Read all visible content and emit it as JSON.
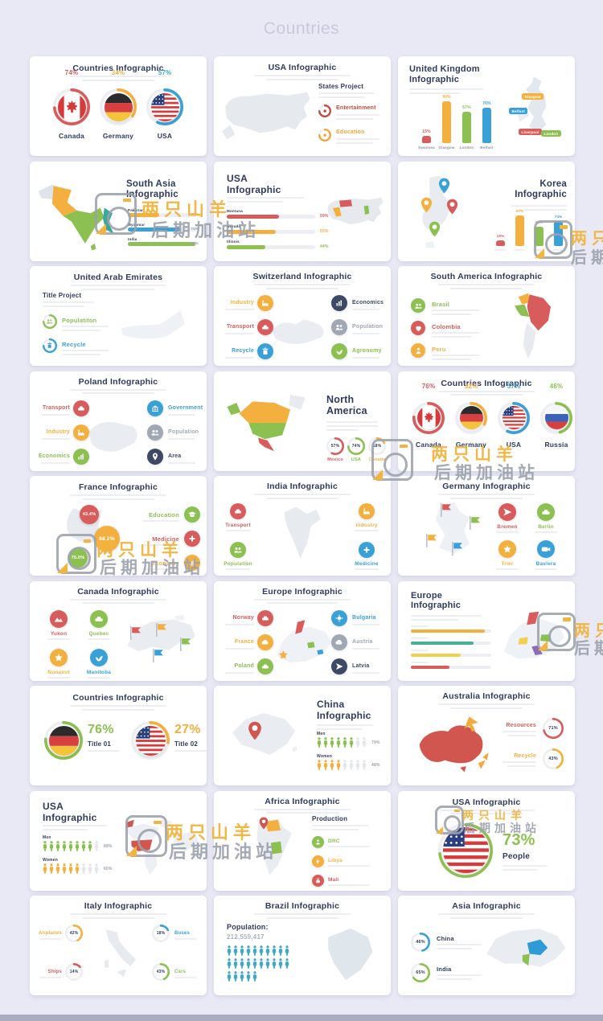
{
  "page": {
    "title": "Countries"
  },
  "watermark": {
    "brand": "两只山羊",
    "sub": "后期加油站"
  },
  "palette": {
    "red": "#d85c5c",
    "orange": "#f3b03f",
    "green": "#8cc152",
    "blue": "#3aa0d8",
    "navy": "#2f3b5c",
    "gray": "#a0a8b4",
    "teal": "#3fa9c9"
  },
  "slides": [
    {
      "type": "flags",
      "title": "Countries Infographic",
      "flags": [
        {
          "name": "Canada",
          "pct": "74%",
          "value": 74,
          "color": "#d85c5c",
          "flag": "canada"
        },
        {
          "name": "Germany",
          "pct": "34%",
          "value": 34,
          "color": "#f3b03f",
          "flag": "germany"
        },
        {
          "name": "USA",
          "pct": "57%",
          "value": 57,
          "color": "#3aa0d8",
          "flag": "usa"
        }
      ]
    },
    {
      "type": "map_items_right",
      "title": "USA Infographic",
      "map": "usa",
      "heading": "States Project",
      "items": [
        {
          "label": "Entertainment",
          "color": "#c44c3f"
        },
        {
          "label": "Education",
          "color": "#eda73d"
        }
      ]
    },
    {
      "type": "uk",
      "title": "United Kingdom\nInfographic",
      "map": "uk",
      "bars": [
        {
          "label": "Swansea",
          "value": 15,
          "display": "15%",
          "color": "#d85c5c"
        },
        {
          "label": "Glasgow",
          "value": 90,
          "display": "90%",
          "color": "#f3b03f"
        },
        {
          "label": "London",
          "value": 67,
          "display": "67%",
          "color": "#8cc152"
        },
        {
          "label": "Belfast",
          "value": 76,
          "display": "76%",
          "color": "#3aa0d8"
        }
      ],
      "pills": [
        {
          "label": "Glasgow",
          "color": "#f3b03f"
        },
        {
          "label": "Belfast",
          "color": "#3aa0d8"
        },
        {
          "label": "Liverpool",
          "color": "#d85c5c"
        },
        {
          "label": "London",
          "color": "#8cc152"
        }
      ]
    },
    {
      "type": "map_left_hbars",
      "title": "South Asia\nInfographic",
      "map": "south_asia",
      "bars": [
        {
          "label": "Pakistan",
          "value": 45,
          "display": "45%",
          "color": "#f3b03f"
        },
        {
          "label": "Myanmar",
          "value": 75,
          "display": "75%",
          "color": "#3aa0d8"
        },
        {
          "label": "India",
          "value": 98,
          "display": "98%",
          "color": "#8cc152"
        }
      ]
    },
    {
      "type": "hbars_map_right",
      "title": "USA\nInfographic",
      "map": "usa_states",
      "bars": [
        {
          "label": "Montana",
          "value": 59,
          "display": "59%",
          "color": "#d85c5c"
        },
        {
          "label": "Nevada",
          "value": 55,
          "display": "55%",
          "color": "#f3b03f"
        },
        {
          "label": "Illinois",
          "value": 44,
          "display": "44%",
          "color": "#8cc152"
        }
      ]
    },
    {
      "type": "korea",
      "title": "Korea\nInfographic",
      "map": "korea",
      "pins": [
        "#3aa0d8",
        "#d85c5c",
        "#f3b03f",
        "#8cc152"
      ],
      "bars": [
        {
          "value": 19,
          "display": "19%",
          "color": "#d85c5c"
        },
        {
          "value": 92,
          "display": "92%",
          "color": "#f3b03f"
        },
        {
          "value": 59,
          "display": "59%",
          "color": "#8cc152"
        },
        {
          "value": 74,
          "display": "74%",
          "color": "#3aa0d8"
        }
      ]
    },
    {
      "type": "uae",
      "title": "United Arab Emirates",
      "map": "uae",
      "heading": "Title Project",
      "items": [
        {
          "label": "Populatiton",
          "color": "#8cc152",
          "glyph": "people"
        },
        {
          "label": "Recycle",
          "color": "#3aa0d8",
          "glyph": "trash"
        }
      ]
    },
    {
      "type": "six_items",
      "title": "Switzerland Infographic",
      "map": "switzerland",
      "left": [
        {
          "label": "Industry",
          "color": "#f3b03f",
          "glyph": "factory"
        },
        {
          "label": "Transport",
          "color": "#d85c5c",
          "glyph": "car"
        },
        {
          "label": "Recycle",
          "color": "#3aa0d8",
          "glyph": "trash"
        }
      ],
      "right": [
        {
          "label": "Economics",
          "color": "#3c4a66",
          "glyph": "chart"
        },
        {
          "label": "Population",
          "color": "#a0a8b4",
          "glyph": "people"
        },
        {
          "label": "Agronomy",
          "color": "#8cc152",
          "glyph": "plant"
        }
      ]
    },
    {
      "type": "items_left_map",
      "title": "South America Infographic",
      "map": "south_america",
      "items": [
        {
          "label": "Brasil",
          "color": "#8cc152",
          "glyph": "people"
        },
        {
          "label": "Colombia",
          "color": "#d85c5c",
          "glyph": "heart"
        },
        {
          "label": "Peru",
          "color": "#f3b03f",
          "glyph": "person"
        }
      ]
    },
    {
      "type": "six_items",
      "title": "Poland Infographic",
      "map": "poland",
      "left": [
        {
          "label": "Transport",
          "color": "#d85c5c",
          "glyph": "car"
        },
        {
          "label": "Industry",
          "color": "#f3b03f",
          "glyph": "factory"
        },
        {
          "label": "Economics",
          "color": "#8cc152",
          "glyph": "chart"
        }
      ],
      "right": [
        {
          "label": "Government",
          "color": "#3aa0d8",
          "glyph": "bank"
        },
        {
          "label": "Population",
          "color": "#a0a8b4",
          "glyph": "people"
        },
        {
          "label": "Area",
          "color": "#3c4a66",
          "glyph": "pin"
        }
      ]
    },
    {
      "type": "map_left_rings",
      "title": "North\nAmerica",
      "map": "north_america",
      "rings": [
        {
          "label": "Mexico",
          "value": 57,
          "display": "57%",
          "color": "#d85c5c"
        },
        {
          "label": "USA",
          "value": 74,
          "display": "74%",
          "color": "#8cc152"
        },
        {
          "label": "Canada",
          "value": 18,
          "display": "18%",
          "color": "#f3b03f"
        }
      ]
    },
    {
      "type": "flags",
      "title": "Countries Infographic",
      "flags": [
        {
          "name": "Canada",
          "pct": "76%",
          "value": 76,
          "color": "#d85c5c",
          "flag": "canada"
        },
        {
          "name": "Germany",
          "pct": "32%",
          "value": 32,
          "color": "#f3b03f",
          "flag": "germany"
        },
        {
          "name": "USA",
          "pct": "57%",
          "value": 57,
          "color": "#3aa0d8",
          "flag": "usa"
        },
        {
          "name": "Russia",
          "pct": "46%",
          "value": 46,
          "color": "#8cc152",
          "flag": "russia"
        }
      ]
    },
    {
      "type": "france",
      "title": "France Infographic",
      "map": "france",
      "bubbles": [
        {
          "display": "43.4%",
          "color": "#d85c5c"
        },
        {
          "display": "68.2%",
          "color": "#f3b03f"
        },
        {
          "display": "76.0%",
          "color": "#8cc152"
        }
      ],
      "items": [
        {
          "label": "Education",
          "color": "#8cc152",
          "glyph": "cap"
        },
        {
          "label": "Medicine",
          "color": "#d85c5c",
          "glyph": "plus"
        },
        {
          "label": "Economy",
          "color": "#f3b03f",
          "glyph": "chart"
        }
      ]
    },
    {
      "type": "four_corners",
      "title": "India Infographic",
      "map": "india",
      "items": [
        {
          "label": "Transport",
          "color": "#d85c5c",
          "glyph": "car"
        },
        {
          "label": "Industry",
          "color": "#f3b03f",
          "glyph": "factory"
        },
        {
          "label": "Population",
          "color": "#8cc152",
          "glyph": "people"
        },
        {
          "label": "Medicine",
          "color": "#3aa0d8",
          "glyph": "plus"
        }
      ]
    },
    {
      "type": "map_flags_grid",
      "title": "Germany Infographic",
      "map": "germany",
      "flag_colors": [
        "#d85c5c",
        "#8cc152",
        "#f3b03f",
        "#3aa0d8"
      ],
      "items": [
        {
          "label": "Bremen",
          "color": "#d85c5c",
          "glyph": "plane"
        },
        {
          "label": "Berlin",
          "color": "#8cc152",
          "glyph": "car"
        },
        {
          "label": "Trier",
          "color": "#f3b03f",
          "glyph": "star"
        },
        {
          "label": "Baviera",
          "color": "#3aa0d8",
          "glyph": "cam"
        }
      ]
    },
    {
      "type": "grid_map_right",
      "title": "Canada Infographic",
      "map": "canada",
      "flag_colors": [
        "#d85c5c",
        "#f3b03f",
        "#8cc152",
        "#3aa0d8"
      ],
      "items": [
        {
          "label": "Yukon",
          "color": "#d85c5c",
          "glyph": "mount"
        },
        {
          "label": "Quebec",
          "color": "#8cc152",
          "glyph": "car"
        },
        {
          "label": "Nunavut",
          "color": "#f3b03f",
          "glyph": "star"
        },
        {
          "label": "Manitoba",
          "color": "#3aa0d8",
          "glyph": "plant"
        }
      ]
    },
    {
      "type": "six_items",
      "title": "Europe Infographic",
      "map": "europe1",
      "left": [
        {
          "label": "Norway",
          "color": "#d85c5c",
          "glyph": "car"
        },
        {
          "label": "France",
          "color": "#f3b03f",
          "glyph": "cloud"
        },
        {
          "label": "Poland",
          "color": "#8cc152",
          "glyph": "car"
        }
      ],
      "right": [
        {
          "label": "Bulgaria",
          "color": "#3aa0d8",
          "glyph": "sun"
        },
        {
          "label": "Austria",
          "color": "#a0a8b4",
          "glyph": "cloud"
        },
        {
          "label": "Latvia",
          "color": "#3c4a66",
          "glyph": "plane"
        }
      ]
    },
    {
      "type": "europe2",
      "title": "Europe\nInfographic",
      "map": "europe2",
      "bars": [
        {
          "value": 92,
          "color": "#f3b03f"
        },
        {
          "value": 78,
          "color": "#45b09c"
        },
        {
          "value": 62,
          "color": "#f3cf4e"
        },
        {
          "value": 48,
          "color": "#d85c5c"
        }
      ]
    },
    {
      "type": "two_flags",
      "title": "Countries Infographic",
      "entries": [
        {
          "flag": "germany",
          "ring": "#8cc152",
          "pct": "76%",
          "value": 76,
          "sub": "Title 01",
          "color": "#8cc152"
        },
        {
          "flag": "usa",
          "ring": "#f3b03f",
          "pct": "27%",
          "value": 27,
          "sub": "Title 02",
          "color": "#f3b03f"
        }
      ]
    },
    {
      "type": "china",
      "title": "China\nInfographic",
      "map": "china",
      "rows": [
        {
          "label": "Men",
          "display": "79%",
          "color": "#8cc152",
          "filled": 6,
          "total": 8
        },
        {
          "label": "Women",
          "display": "48%",
          "color": "#f3b03f",
          "filled": 4,
          "total": 8
        }
      ]
    },
    {
      "type": "australia",
      "title": "Australia Infographic",
      "map": "australia",
      "rings": [
        {
          "label": "Resources",
          "display": "71%",
          "value": 71,
          "color": "#d85c5c"
        },
        {
          "label": "Recycle",
          "display": "43%",
          "value": 43,
          "color": "#f3b03f"
        }
      ]
    },
    {
      "type": "usa_people",
      "title": "USA\nInfographic",
      "map": "world_usa",
      "rows": [
        {
          "label": "Men",
          "display": "88%",
          "color": "#8cc152",
          "filled": 8,
          "total": 9
        },
        {
          "label": "Women",
          "display": "65%",
          "color": "#f3b03f",
          "filled": 6,
          "total": 9
        }
      ]
    },
    {
      "type": "africa",
      "title": "Africa Infographic",
      "map": "africa",
      "heading": "Production",
      "items": [
        {
          "label": "DRC",
          "color": "#8cc152",
          "glyph": "person"
        },
        {
          "label": "Libya",
          "color": "#f3b03f",
          "glyph": "bolt"
        },
        {
          "label": "Mali",
          "color": "#d85c5c",
          "glyph": "lock"
        }
      ]
    },
    {
      "type": "big_flag",
      "title": "USA Infographic",
      "flag": "usa",
      "ring": "#8cc152",
      "pct": "73%",
      "value": 73,
      "sub": "People",
      "color": "#8cc152"
    },
    {
      "type": "italy",
      "title": "Italy Infographic",
      "map": "italy",
      "left": [
        {
          "label": "Airplanes",
          "display": "42%",
          "value": 42,
          "color": "#f3b03f"
        },
        {
          "label": "Ships",
          "display": "14%",
          "value": 14,
          "color": "#d85c5c"
        }
      ],
      "right": [
        {
          "label": "Buses",
          "display": "18%",
          "value": 18,
          "color": "#3aa0d8"
        },
        {
          "label": "Cars",
          "display": "43%",
          "value": 43,
          "color": "#8cc152"
        }
      ]
    },
    {
      "type": "brazil",
      "title": "Brazil Infographic",
      "map": "brazil",
      "population_label": "Population:",
      "population_value": "212,559,417",
      "people_color": "#3fa9c9",
      "rows": [
        10,
        10,
        5
      ]
    },
    {
      "type": "asia",
      "title": "Asia Infographic",
      "map": "asia",
      "rings": [
        {
          "label": "China",
          "display": "46%",
          "value": 46,
          "color": "#3aa0d8"
        },
        {
          "label": "India",
          "display": "65%",
          "value": 65,
          "color": "#8cc152"
        }
      ]
    }
  ]
}
